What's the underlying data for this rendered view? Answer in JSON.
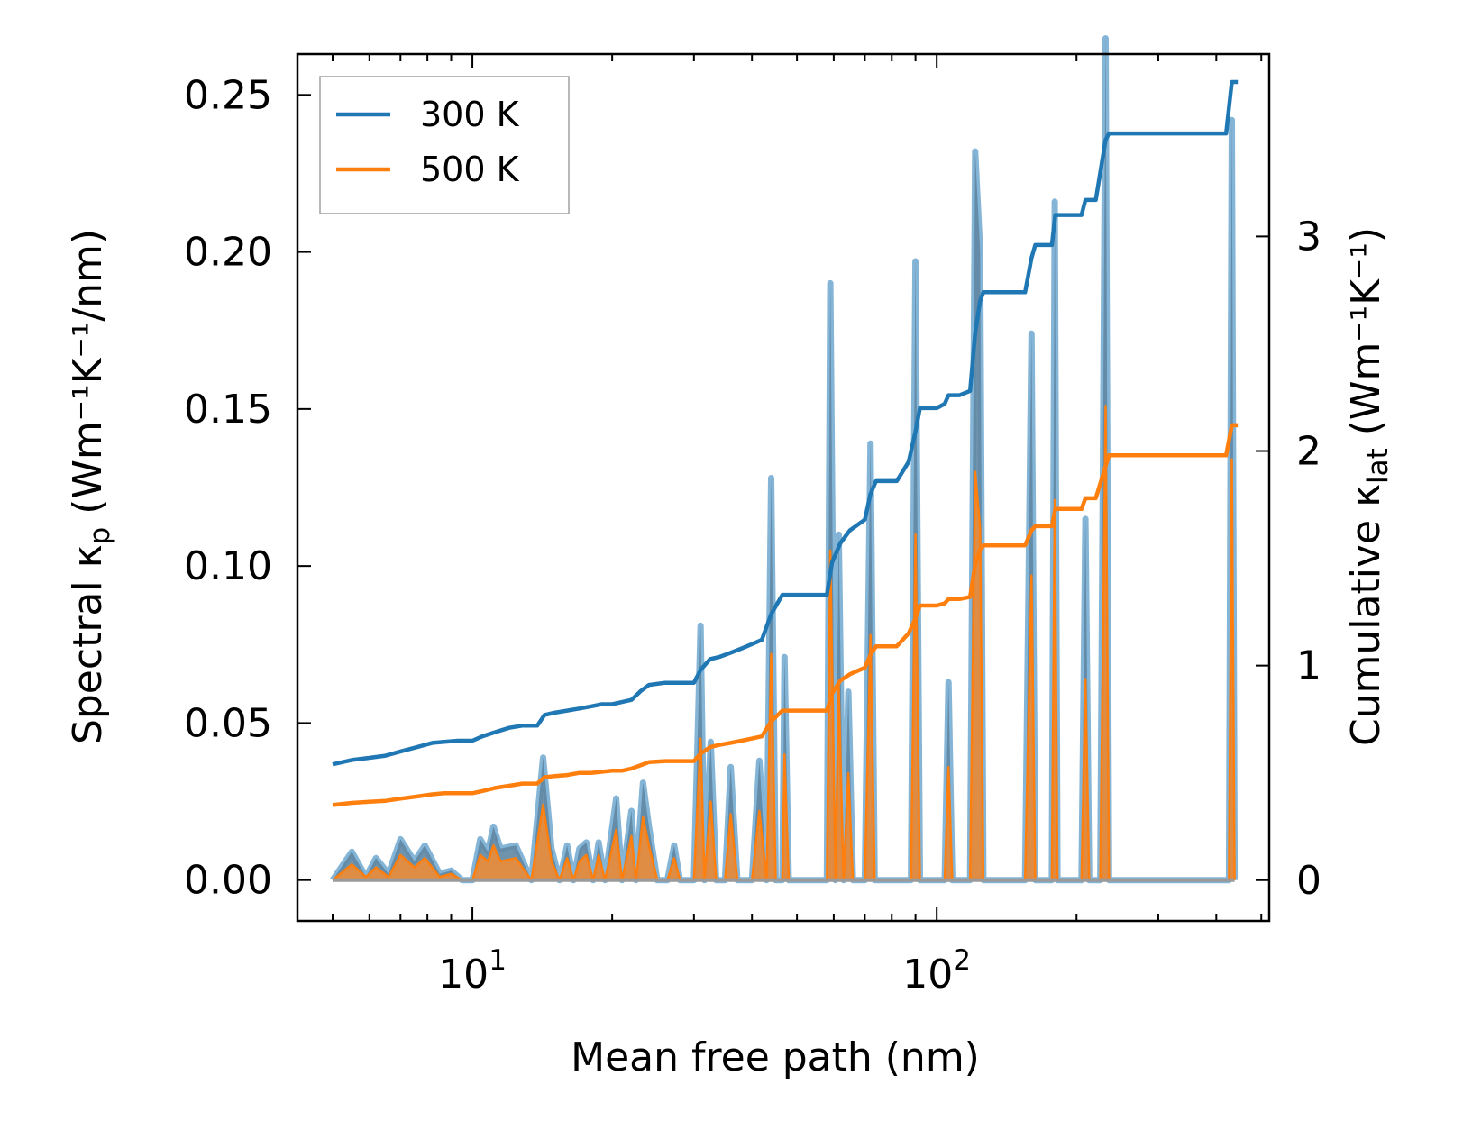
{
  "chart_data": {
    "type": "line",
    "title": "",
    "xlabel": "Mean free path (nm)",
    "ylabel": "Spectral κ",
    "ylabel_sub": "p",
    "ylabel_units": " (Wm⁻¹K⁻¹/nm)",
    "y2label": "Cumulative κ",
    "y2label_sub": "lat",
    "y2label_units": " (Wm⁻¹K⁻¹)",
    "x_scale": "log",
    "xlim": [
      4.2,
      520
    ],
    "ylim": [
      -0.013,
      0.263
    ],
    "y2lim": [
      -0.19,
      3.85
    ],
    "x_ticks": [
      {
        "value": 10,
        "base": "10",
        "exp": "1"
      },
      {
        "value": 100,
        "base": "10",
        "exp": "2"
      }
    ],
    "y_ticks": [
      "0.00",
      "0.05",
      "0.10",
      "0.15",
      "0.20",
      "0.25"
    ],
    "y2_ticks": [
      "0",
      "1",
      "2",
      "3"
    ],
    "legend": {
      "placement": "top-left",
      "entries": [
        "300 K",
        "500 K"
      ]
    },
    "colors": {
      "300 K": "#1f77b4",
      "500 K": "#ff7f0e",
      "fill": "#c8a48a"
    },
    "spectral_300K": [
      [
        5.0,
        0
      ],
      [
        5.5,
        0.009
      ],
      [
        5.9,
        0.001
      ],
      [
        6.2,
        0.007
      ],
      [
        6.6,
        0.002
      ],
      [
        7.0,
        0.013
      ],
      [
        7.5,
        0.006
      ],
      [
        7.9,
        0.011
      ],
      [
        8.5,
        0.002
      ],
      [
        9.0,
        0.003
      ],
      [
        9.5,
        0
      ],
      [
        10.0,
        0
      ],
      [
        10.4,
        0.013
      ],
      [
        10.8,
        0.009
      ],
      [
        11.1,
        0.017
      ],
      [
        11.5,
        0.01
      ],
      [
        12.4,
        0.011
      ],
      [
        13.4,
        0
      ],
      [
        14.2,
        0.039
      ],
      [
        14.8,
        0.01
      ],
      [
        15.4,
        0
      ],
      [
        16.0,
        0.011
      ],
      [
        16.5,
        0
      ],
      [
        17.0,
        0.01
      ],
      [
        17.6,
        0.012
      ],
      [
        18.2,
        0
      ],
      [
        18.7,
        0.012
      ],
      [
        19.3,
        0
      ],
      [
        20.4,
        0.026
      ],
      [
        21.0,
        0
      ],
      [
        22.0,
        0.022
      ],
      [
        22.5,
        0
      ],
      [
        23.3,
        0.031
      ],
      [
        24.0,
        0.017
      ],
      [
        25.0,
        0
      ],
      [
        26.3,
        0
      ],
      [
        27.2,
        0.011
      ],
      [
        28.0,
        0
      ],
      [
        30.0,
        0
      ],
      [
        31.0,
        0.081
      ],
      [
        31.6,
        0
      ],
      [
        32.6,
        0.044
      ],
      [
        33.5,
        0
      ],
      [
        35.0,
        0
      ],
      [
        36.0,
        0.036
      ],
      [
        37.2,
        0
      ],
      [
        38.5,
        0
      ],
      [
        40.0,
        0
      ],
      [
        41.5,
        0.038
      ],
      [
        43.0,
        0
      ],
      [
        44.0,
        0.128
      ],
      [
        45.0,
        0
      ],
      [
        46.5,
        0
      ],
      [
        47.0,
        0.071
      ],
      [
        48.0,
        0
      ],
      [
        52.0,
        0
      ],
      [
        58.0,
        0
      ],
      [
        59.0,
        0.19
      ],
      [
        60.5,
        0
      ],
      [
        61.5,
        0.11
      ],
      [
        63.0,
        0
      ],
      [
        64.5,
        0.06
      ],
      [
        66.0,
        0
      ],
      [
        70.0,
        0
      ],
      [
        72.0,
        0.139
      ],
      [
        73.5,
        0
      ],
      [
        82.0,
        0
      ],
      [
        88.0,
        0
      ],
      [
        90.0,
        0.197
      ],
      [
        92.0,
        0
      ],
      [
        100.0,
        0
      ],
      [
        104.0,
        0
      ],
      [
        106.0,
        0.063
      ],
      [
        108.0,
        0
      ],
      [
        112.0,
        0
      ],
      [
        118.0,
        0
      ],
      [
        121.0,
        0.232
      ],
      [
        124.0,
        0.2
      ],
      [
        126.0,
        0
      ],
      [
        135.0,
        0
      ],
      [
        155.0,
        0
      ],
      [
        160.0,
        0.174
      ],
      [
        163.0,
        0
      ],
      [
        170.0,
        0
      ],
      [
        177.0,
        0
      ],
      [
        179.5,
        0.216
      ],
      [
        182.0,
        0
      ],
      [
        195.0,
        0
      ],
      [
        205.0,
        0
      ],
      [
        209.0,
        0.115
      ],
      [
        213.0,
        0
      ],
      [
        225.0,
        0
      ],
      [
        231.0,
        0.268
      ],
      [
        235.0,
        0
      ],
      [
        280.0,
        0
      ],
      [
        400.0,
        0
      ],
      [
        426.0,
        0
      ],
      [
        432.0,
        0.242
      ],
      [
        438.0,
        0
      ]
    ],
    "spectral_500K": [
      [
        5.0,
        0
      ],
      [
        5.5,
        0.005
      ],
      [
        5.9,
        0.001
      ],
      [
        6.2,
        0.004
      ],
      [
        6.6,
        0.001
      ],
      [
        7.0,
        0.008
      ],
      [
        7.5,
        0.004
      ],
      [
        7.9,
        0.007
      ],
      [
        8.5,
        0.001
      ],
      [
        9.0,
        0.002
      ],
      [
        9.5,
        0
      ],
      [
        10.0,
        0
      ],
      [
        10.4,
        0.008
      ],
      [
        10.8,
        0.006
      ],
      [
        11.1,
        0.011
      ],
      [
        11.5,
        0.006
      ],
      [
        12.4,
        0.007
      ],
      [
        13.4,
        0
      ],
      [
        14.2,
        0.024
      ],
      [
        14.8,
        0.006
      ],
      [
        15.4,
        0
      ],
      [
        16.0,
        0.007
      ],
      [
        16.5,
        0
      ],
      [
        17.0,
        0.006
      ],
      [
        17.6,
        0.008
      ],
      [
        18.2,
        0
      ],
      [
        18.7,
        0.008
      ],
      [
        19.3,
        0
      ],
      [
        20.4,
        0.016
      ],
      [
        21.0,
        0
      ],
      [
        22.0,
        0.014
      ],
      [
        22.5,
        0
      ],
      [
        23.3,
        0.02
      ],
      [
        24.0,
        0.011
      ],
      [
        25.0,
        0
      ],
      [
        26.3,
        0
      ],
      [
        27.2,
        0.007
      ],
      [
        28.0,
        0
      ],
      [
        30.0,
        0
      ],
      [
        31.0,
        0.045
      ],
      [
        31.6,
        0
      ],
      [
        32.6,
        0.025
      ],
      [
        33.5,
        0
      ],
      [
        35.0,
        0
      ],
      [
        36.0,
        0.021
      ],
      [
        37.2,
        0
      ],
      [
        38.5,
        0
      ],
      [
        40.0,
        0
      ],
      [
        41.5,
        0.022
      ],
      [
        43.0,
        0
      ],
      [
        44.0,
        0.072
      ],
      [
        45.0,
        0
      ],
      [
        46.5,
        0
      ],
      [
        47.0,
        0.04
      ],
      [
        48.0,
        0
      ],
      [
        52.0,
        0
      ],
      [
        58.0,
        0
      ],
      [
        59.0,
        0.105
      ],
      [
        60.5,
        0
      ],
      [
        61.5,
        0.062
      ],
      [
        63.0,
        0
      ],
      [
        64.5,
        0.034
      ],
      [
        66.0,
        0
      ],
      [
        70.0,
        0
      ],
      [
        72.0,
        0.078
      ],
      [
        73.5,
        0
      ],
      [
        82.0,
        0
      ],
      [
        88.0,
        0
      ],
      [
        90.0,
        0.11
      ],
      [
        92.0,
        0
      ],
      [
        100.0,
        0
      ],
      [
        104.0,
        0
      ],
      [
        106.0,
        0.036
      ],
      [
        108.0,
        0
      ],
      [
        112.0,
        0
      ],
      [
        118.0,
        0
      ],
      [
        121.0,
        0.13
      ],
      [
        124.0,
        0.112
      ],
      [
        126.0,
        0
      ],
      [
        135.0,
        0
      ],
      [
        155.0,
        0
      ],
      [
        160.0,
        0.097
      ],
      [
        163.0,
        0
      ],
      [
        170.0,
        0
      ],
      [
        177.0,
        0
      ],
      [
        179.5,
        0.121
      ],
      [
        182.0,
        0
      ],
      [
        195.0,
        0
      ],
      [
        205.0,
        0
      ],
      [
        209.0,
        0.064
      ],
      [
        213.0,
        0
      ],
      [
        225.0,
        0
      ],
      [
        231.0,
        0.151
      ],
      [
        235.0,
        0
      ],
      [
        280.0,
        0
      ],
      [
        400.0,
        0
      ],
      [
        426.0,
        0
      ],
      [
        432.0,
        0.134
      ],
      [
        438.0,
        0
      ]
    ],
    "cumulative_300K": [
      [
        5.0,
        0.54
      ],
      [
        5.5,
        0.56
      ],
      [
        6.0,
        0.57
      ],
      [
        6.5,
        0.58
      ],
      [
        7.0,
        0.6
      ],
      [
        7.6,
        0.62
      ],
      [
        8.2,
        0.64
      ],
      [
        8.7,
        0.645
      ],
      [
        9.3,
        0.65
      ],
      [
        10.0,
        0.65
      ],
      [
        10.5,
        0.67
      ],
      [
        11.2,
        0.69
      ],
      [
        12.0,
        0.71
      ],
      [
        12.8,
        0.72
      ],
      [
        13.8,
        0.72
      ],
      [
        14.3,
        0.77
      ],
      [
        15.0,
        0.78
      ],
      [
        16.0,
        0.79
      ],
      [
        17.0,
        0.8
      ],
      [
        18.0,
        0.81
      ],
      [
        19.0,
        0.82
      ],
      [
        20.0,
        0.82
      ],
      [
        21.0,
        0.83
      ],
      [
        22.0,
        0.84
      ],
      [
        23.0,
        0.88
      ],
      [
        24.0,
        0.91
      ],
      [
        26.0,
        0.92
      ],
      [
        28.0,
        0.92
      ],
      [
        30.0,
        0.92
      ],
      [
        31.0,
        0.98
      ],
      [
        32.5,
        1.03
      ],
      [
        34.0,
        1.04
      ],
      [
        36.0,
        1.06
      ],
      [
        38.0,
        1.08
      ],
      [
        40.0,
        1.1
      ],
      [
        42.0,
        1.12
      ],
      [
        44.0,
        1.24
      ],
      [
        46.5,
        1.33
      ],
      [
        52.0,
        1.33
      ],
      [
        58.0,
        1.33
      ],
      [
        59.5,
        1.48
      ],
      [
        62.0,
        1.57
      ],
      [
        65.0,
        1.63
      ],
      [
        70.0,
        1.68
      ],
      [
        72.0,
        1.8
      ],
      [
        74.0,
        1.86
      ],
      [
        82.0,
        1.86
      ],
      [
        87.0,
        1.95
      ],
      [
        90.0,
        2.09
      ],
      [
        92.0,
        2.2
      ],
      [
        100.0,
        2.2
      ],
      [
        104.0,
        2.22
      ],
      [
        106.0,
        2.26
      ],
      [
        112.0,
        2.26
      ],
      [
        118.0,
        2.28
      ],
      [
        121.0,
        2.55
      ],
      [
        124.0,
        2.7
      ],
      [
        126.0,
        2.74
      ],
      [
        155.0,
        2.74
      ],
      [
        160.0,
        2.9
      ],
      [
        163.0,
        2.96
      ],
      [
        177.0,
        2.96
      ],
      [
        180.0,
        3.1
      ],
      [
        195.0,
        3.1
      ],
      [
        205.0,
        3.1
      ],
      [
        209.0,
        3.17
      ],
      [
        220.0,
        3.17
      ],
      [
        231.0,
        3.45
      ],
      [
        235.0,
        3.48
      ],
      [
        420.0,
        3.48
      ],
      [
        432.0,
        3.72
      ],
      [
        445.0,
        3.72
      ]
    ],
    "cumulative_500K": [
      [
        5.0,
        0.35
      ],
      [
        5.5,
        0.36
      ],
      [
        6.0,
        0.365
      ],
      [
        6.5,
        0.37
      ],
      [
        7.0,
        0.38
      ],
      [
        7.6,
        0.39
      ],
      [
        8.2,
        0.4
      ],
      [
        8.7,
        0.405
      ],
      [
        9.3,
        0.405
      ],
      [
        10.0,
        0.405
      ],
      [
        10.5,
        0.415
      ],
      [
        11.2,
        0.43
      ],
      [
        12.0,
        0.44
      ],
      [
        12.8,
        0.45
      ],
      [
        13.8,
        0.45
      ],
      [
        14.3,
        0.48
      ],
      [
        15.0,
        0.485
      ],
      [
        16.0,
        0.49
      ],
      [
        17.0,
        0.5
      ],
      [
        18.0,
        0.5
      ],
      [
        19.0,
        0.505
      ],
      [
        20.0,
        0.51
      ],
      [
        21.0,
        0.51
      ],
      [
        22.0,
        0.52
      ],
      [
        23.0,
        0.535
      ],
      [
        24.0,
        0.55
      ],
      [
        26.0,
        0.555
      ],
      [
        28.0,
        0.555
      ],
      [
        30.0,
        0.555
      ],
      [
        31.0,
        0.59
      ],
      [
        32.5,
        0.62
      ],
      [
        34.0,
        0.63
      ],
      [
        36.0,
        0.64
      ],
      [
        38.0,
        0.65
      ],
      [
        40.0,
        0.66
      ],
      [
        42.0,
        0.67
      ],
      [
        44.0,
        0.74
      ],
      [
        46.5,
        0.79
      ],
      [
        52.0,
        0.79
      ],
      [
        58.0,
        0.79
      ],
      [
        59.5,
        0.87
      ],
      [
        62.0,
        0.93
      ],
      [
        65.0,
        0.96
      ],
      [
        70.0,
        0.99
      ],
      [
        72.0,
        1.05
      ],
      [
        74.0,
        1.09
      ],
      [
        82.0,
        1.09
      ],
      [
        87.0,
        1.15
      ],
      [
        90.0,
        1.22
      ],
      [
        92.0,
        1.28
      ],
      [
        100.0,
        1.28
      ],
      [
        104.0,
        1.29
      ],
      [
        106.0,
        1.31
      ],
      [
        112.0,
        1.31
      ],
      [
        118.0,
        1.32
      ],
      [
        121.0,
        1.47
      ],
      [
        124.0,
        1.54
      ],
      [
        126.0,
        1.56
      ],
      [
        155.0,
        1.56
      ],
      [
        160.0,
        1.63
      ],
      [
        163.0,
        1.65
      ],
      [
        177.0,
        1.65
      ],
      [
        180.0,
        1.73
      ],
      [
        195.0,
        1.73
      ],
      [
        205.0,
        1.73
      ],
      [
        209.0,
        1.78
      ],
      [
        220.0,
        1.78
      ],
      [
        231.0,
        1.93
      ],
      [
        235.0,
        1.98
      ],
      [
        420.0,
        1.98
      ],
      [
        432.0,
        2.12
      ],
      [
        445.0,
        2.12
      ]
    ]
  }
}
